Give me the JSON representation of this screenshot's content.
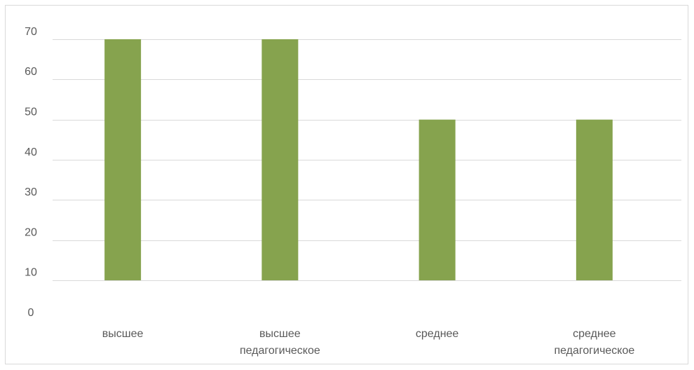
{
  "chart_data": {
    "type": "bar",
    "title": "",
    "xlabel": "",
    "ylabel": "",
    "categories": [
      [
        "высшее"
      ],
      [
        "высшее",
        "педагогическое"
      ],
      [
        "среднее"
      ],
      [
        "среднее",
        "педагогическое"
      ]
    ],
    "series": [
      {
        "values": [
          70,
          70,
          50,
          50
        ],
        "color": "#86a34e"
      }
    ],
    "y_tick_labels": [
      "0",
      "10",
      "20",
      "30",
      "40",
      "50",
      "60",
      "70"
    ],
    "y_tick_values": [
      0,
      10,
      20,
      30,
      40,
      50,
      60,
      70
    ],
    "ylim": [
      10,
      70
    ],
    "gridlines": true,
    "gridline_color": "#d9d9d9",
    "legend": "none"
  }
}
